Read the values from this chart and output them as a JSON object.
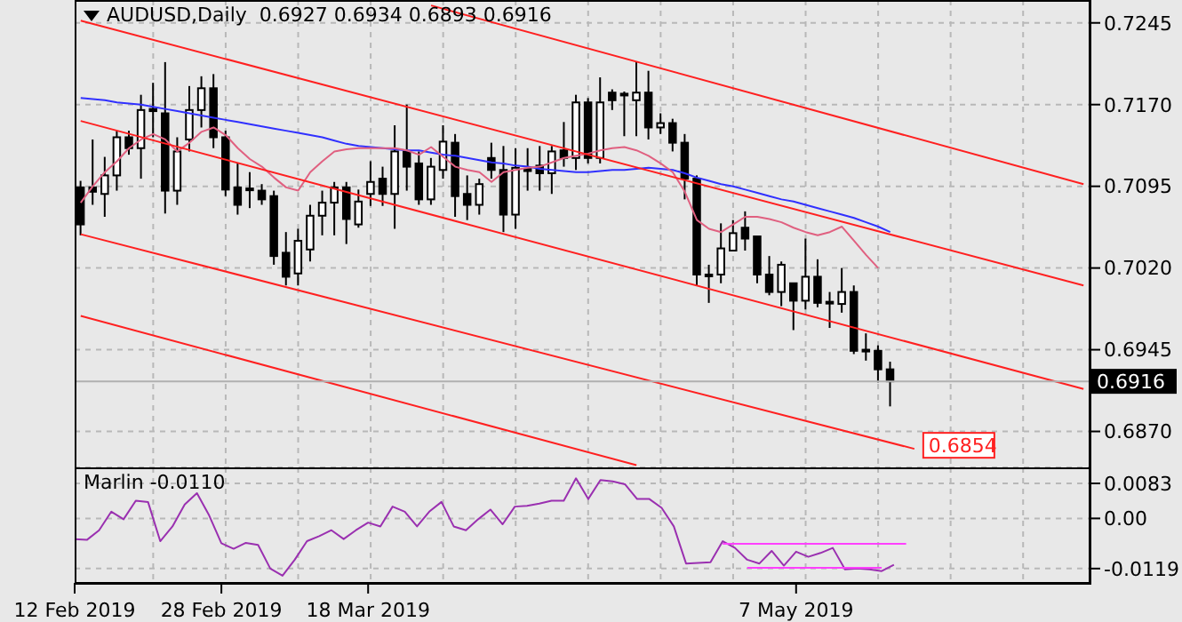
{
  "chart_data": [
    {
      "type": "candlestick",
      "title": "AUDUSD,Daily  0.6927 0.6934 0.6893 0.6916",
      "tick_labels": "y",
      "grid": true,
      "categories": [
        null,
        null,
        null,
        null,
        null,
        null,
        null,
        null,
        null,
        null,
        null,
        null,
        null,
        null,
        null,
        null,
        null,
        null,
        null,
        null,
        null,
        null,
        null,
        null,
        null,
        null,
        null,
        null,
        null,
        null,
        null,
        null,
        null,
        null,
        null,
        null,
        null,
        null,
        null,
        null,
        null,
        null,
        null,
        null,
        null,
        null,
        null,
        null,
        null,
        null,
        null,
        null,
        null,
        null,
        null,
        null,
        null,
        null,
        null,
        null,
        null,
        null,
        null,
        null,
        null,
        null,
        null,
        null,
        null,
        null,
        null,
        null,
        null,
        null,
        null,
        null,
        null,
        null,
        null,
        null,
        null,
        null,
        null,
        null
      ],
      "ohlc": [
        [
          0.7094,
          0.71,
          0.705,
          0.706
        ],
        [
          0.7094,
          0.7138,
          0.7078,
          0.709
        ],
        [
          0.7088,
          0.7122,
          0.7067,
          0.7105
        ],
        [
          0.7105,
          0.7146,
          0.7091,
          0.714
        ],
        [
          0.714,
          0.7146,
          0.7124,
          0.713
        ],
        [
          0.713,
          0.7179,
          0.7102,
          0.7165
        ],
        [
          0.7166,
          0.719,
          0.714,
          0.7164
        ],
        [
          0.7162,
          0.7209,
          0.707,
          0.7091
        ],
        [
          0.7091,
          0.714,
          0.7078,
          0.7127
        ],
        [
          0.7138,
          0.7187,
          0.7127,
          0.7165
        ],
        [
          0.7165,
          0.7196,
          0.7149,
          0.7185
        ],
        [
          0.7185,
          0.7198,
          0.713,
          0.714
        ],
        [
          0.714,
          0.7146,
          0.7086,
          0.7092
        ],
        [
          0.7094,
          0.7116,
          0.7069,
          0.7078
        ],
        [
          0.7093,
          0.7108,
          0.7075,
          0.7092
        ],
        [
          0.7091,
          0.7097,
          0.7078,
          0.7083
        ],
        [
          0.7086,
          0.7091,
          0.7023,
          0.7031
        ],
        [
          0.7034,
          0.7053,
          0.7004,
          0.7012
        ],
        [
          0.7015,
          0.7056,
          0.7004,
          0.7045
        ],
        [
          0.7037,
          0.7078,
          0.7026,
          0.7068
        ],
        [
          0.7068,
          0.7091,
          0.705,
          0.708
        ],
        [
          0.708,
          0.7099,
          0.705,
          0.7094
        ],
        [
          0.7094,
          0.7099,
          0.7042,
          0.7065
        ],
        [
          0.706,
          0.7092,
          0.7057,
          0.7081
        ],
        [
          0.7088,
          0.7118,
          0.7077,
          0.7099
        ],
        [
          0.7102,
          0.7113,
          0.7077,
          0.7088
        ],
        [
          0.7088,
          0.7151,
          0.7056,
          0.7127
        ],
        [
          0.7127,
          0.717,
          0.7091,
          0.7113
        ],
        [
          0.7116,
          0.7127,
          0.7078,
          0.7083
        ],
        [
          0.7083,
          0.7121,
          0.7078,
          0.7113
        ],
        [
          0.711,
          0.7151,
          0.7102,
          0.7136
        ],
        [
          0.7135,
          0.7143,
          0.7067,
          0.7086
        ],
        [
          0.7088,
          0.7105,
          0.7064,
          0.7078
        ],
        [
          0.7078,
          0.7102,
          0.7069,
          0.7097
        ],
        [
          0.7121,
          0.7135,
          0.7102,
          0.711
        ],
        [
          0.711,
          0.7132,
          0.7053,
          0.7069
        ],
        [
          0.7069,
          0.713,
          0.7056,
          0.7112
        ],
        [
          0.7111,
          0.713,
          0.7091,
          0.7109
        ],
        [
          0.7114,
          0.7132,
          0.7091,
          0.7107
        ],
        [
          0.7107,
          0.7132,
          0.7088,
          0.7127
        ],
        [
          0.7128,
          0.7154,
          0.7113,
          0.7121
        ],
        [
          0.7121,
          0.7179,
          0.711,
          0.7172
        ],
        [
          0.7172,
          0.7176,
          0.7116,
          0.7121
        ],
        [
          0.7121,
          0.7195,
          0.7116,
          0.7172
        ],
        [
          0.7181,
          0.7184,
          0.7165,
          0.7174
        ],
        [
          0.718,
          0.7182,
          0.7141,
          0.7179
        ],
        [
          0.7174,
          0.7209,
          0.7141,
          0.7181
        ],
        [
          0.7181,
          0.7201,
          0.7138,
          0.7149
        ],
        [
          0.7149,
          0.7162,
          0.7143,
          0.7153
        ],
        [
          0.7153,
          0.7157,
          0.7127,
          0.7135
        ],
        [
          0.7135,
          0.7143,
          0.7083,
          0.7102
        ],
        [
          0.7102,
          0.7105,
          0.7004,
          0.7014
        ],
        [
          0.7014,
          0.7023,
          0.6988,
          0.7013
        ],
        [
          0.7014,
          0.7061,
          0.7006,
          0.7038
        ],
        [
          0.7036,
          0.7064,
          0.7036,
          0.7052
        ],
        [
          0.7057,
          0.7072,
          0.7036,
          0.7047
        ],
        [
          0.7049,
          0.7049,
          0.7006,
          0.7014
        ],
        [
          0.7014,
          0.7031,
          0.6995,
          0.6998
        ],
        [
          0.6998,
          0.7026,
          0.6985,
          0.7023
        ],
        [
          0.7006,
          0.7006,
          0.6963,
          0.699
        ],
        [
          0.699,
          0.7047,
          0.6982,
          0.7012
        ],
        [
          0.7012,
          0.7028,
          0.6984,
          0.6988
        ],
        [
          0.6989,
          0.6998,
          0.6965,
          0.6988
        ],
        [
          0.6987,
          0.702,
          0.6979,
          0.6998
        ],
        [
          0.6998,
          0.7004,
          0.6941,
          0.6944
        ],
        [
          0.6945,
          0.696,
          0.6935,
          0.6944
        ],
        [
          0.6944,
          0.6949,
          0.6915,
          0.6927
        ],
        [
          0.6927,
          0.6934,
          0.6893,
          0.6916
        ],
        null,
        null,
        null,
        null,
        null,
        null,
        null,
        null,
        null,
        null,
        null,
        null,
        null,
        null,
        null,
        null
      ],
      "series": [
        {
          "type": "line",
          "color": "#3030ff",
          "values": [
            0.7176,
            0.7175,
            0.7174,
            0.7172,
            0.7171,
            0.717,
            0.7168,
            0.7166,
            0.7164,
            0.7162,
            0.716,
            0.7158,
            0.7156,
            0.7154,
            0.7152,
            0.715,
            0.7148,
            0.7146,
            0.7144,
            0.7142,
            0.714,
            0.7137,
            0.7134,
            0.7132,
            0.7131,
            0.713,
            0.7129,
            0.7128,
            0.7128,
            0.7126,
            0.7124,
            0.7123,
            0.7121,
            0.7119,
            0.7117,
            0.7116,
            0.7114,
            0.7113,
            0.7111,
            0.711,
            0.7109,
            0.7108,
            0.7108,
            0.7109,
            0.711,
            0.711,
            0.7111,
            0.7112,
            0.7111,
            0.711,
            0.7107,
            0.7103,
            0.71,
            0.7097,
            0.7095,
            0.7092,
            0.7089,
            0.7086,
            0.7083,
            0.7081,
            0.7078,
            0.7075,
            0.7072,
            0.7069,
            0.7066,
            0.7062,
            0.7058,
            0.7053,
            null,
            null,
            null,
            null,
            null,
            null,
            null,
            null,
            null,
            null,
            null,
            null,
            null,
            null,
            null,
            null
          ]
        },
        {
          "type": "line",
          "color": "#e06080",
          "values": [
            0.708,
            0.7095,
            0.7108,
            0.7118,
            0.713,
            0.7138,
            0.7143,
            0.7138,
            0.7127,
            0.7135,
            0.7145,
            0.7149,
            0.7142,
            0.713,
            0.712,
            0.7113,
            0.7103,
            0.7094,
            0.7091,
            0.7108,
            0.7118,
            0.7127,
            0.7129,
            0.713,
            0.713,
            0.713,
            0.713,
            0.7128,
            0.7124,
            0.7131,
            0.7122,
            0.7113,
            0.711,
            0.7108,
            0.7099,
            0.7108,
            0.711,
            0.7112,
            0.7113,
            0.7117,
            0.7121,
            0.7123,
            0.7125,
            0.7128,
            0.713,
            0.7131,
            0.7128,
            0.7123,
            0.7116,
            0.7108,
            0.709,
            0.7064,
            0.7056,
            0.7053,
            0.706,
            0.7067,
            0.7067,
            0.7065,
            0.7062,
            0.7057,
            0.7053,
            0.705,
            0.7053,
            0.7058,
            0.7045,
            0.7032,
            0.702,
            null,
            null,
            null,
            null,
            null,
            null,
            null,
            null,
            null,
            null,
            null,
            null,
            null,
            null,
            null,
            null,
            null
          ]
        },
        {
          "type": "line",
          "color": "#ff2020",
          "values": [
            null,
            null,
            null,
            null,
            null,
            null,
            null,
            null,
            null,
            null,
            null,
            null,
            null,
            null,
            null,
            null,
            null,
            null,
            null,
            null,
            null,
            null,
            null,
            null,
            null,
            null,
            null,
            null,
            null,
            0.7261,
            null,
            null,
            null,
            null,
            null,
            null,
            null,
            null,
            null,
            null,
            null,
            null,
            null,
            null,
            null,
            null,
            null,
            null,
            null,
            null,
            null,
            null,
            null,
            null,
            null,
            null,
            null,
            null,
            null,
            null,
            null,
            null,
            null,
            null,
            null,
            null,
            null,
            null,
            null,
            null,
            null,
            null,
            null,
            null,
            null,
            null,
            null,
            null,
            null,
            null,
            null,
            null,
            null,
            0.7097
          ]
        },
        {
          "type": "line",
          "color": "#ff2020",
          "values": [
            0.7247,
            null,
            null,
            null,
            null,
            null,
            null,
            null,
            null,
            null,
            null,
            null,
            null,
            null,
            null,
            null,
            null,
            null,
            null,
            null,
            null,
            null,
            null,
            null,
            null,
            null,
            null,
            null,
            null,
            null,
            null,
            null,
            null,
            null,
            null,
            null,
            null,
            null,
            null,
            null,
            null,
            null,
            null,
            null,
            null,
            null,
            null,
            null,
            null,
            null,
            null,
            null,
            null,
            null,
            null,
            null,
            null,
            null,
            null,
            null,
            null,
            null,
            null,
            null,
            null,
            null,
            null,
            null,
            null,
            null,
            null,
            null,
            null,
            null,
            null,
            null,
            null,
            null,
            null,
            null,
            null,
            null,
            null,
            0.7004
          ]
        },
        {
          "type": "line",
          "color": "#ff2020",
          "values": [
            0.7155,
            null,
            null,
            null,
            null,
            null,
            null,
            null,
            null,
            null,
            null,
            null,
            null,
            null,
            null,
            null,
            null,
            null,
            null,
            null,
            null,
            null,
            null,
            null,
            null,
            null,
            null,
            null,
            null,
            null,
            null,
            null,
            null,
            null,
            null,
            null,
            null,
            null,
            null,
            null,
            null,
            null,
            null,
            null,
            null,
            null,
            null,
            null,
            null,
            null,
            null,
            null,
            null,
            null,
            null,
            null,
            null,
            null,
            null,
            null,
            null,
            null,
            null,
            null,
            null,
            null,
            null,
            null,
            null,
            null,
            null,
            null,
            null,
            null,
            null,
            null,
            null,
            null,
            null,
            null,
            null,
            null,
            null,
            0.6909
          ]
        },
        {
          "type": "line",
          "color": "#ff2020",
          "values": [
            0.7051,
            null,
            null,
            null,
            null,
            null,
            null,
            null,
            null,
            null,
            null,
            null,
            null,
            null,
            null,
            null,
            null,
            null,
            null,
            null,
            null,
            null,
            null,
            null,
            null,
            null,
            null,
            null,
            null,
            null,
            null,
            null,
            null,
            null,
            null,
            null,
            null,
            null,
            null,
            null,
            null,
            null,
            null,
            null,
            null,
            null,
            null,
            null,
            null,
            null,
            null,
            null,
            null,
            null,
            null,
            null,
            null,
            null,
            null,
            null,
            null,
            null,
            null,
            null,
            null,
            null,
            null,
            null,
            null,
            0.6854,
            null,
            null,
            null,
            null,
            null,
            null,
            null,
            null,
            null,
            null,
            null,
            null,
            null,
            null
          ],
          "value_labels": [
            null,
            null,
            null,
            null,
            null,
            null,
            null,
            null,
            null,
            null,
            null,
            null,
            null,
            null,
            null,
            null,
            null,
            null,
            null,
            null,
            null,
            null,
            null,
            null,
            null,
            null,
            null,
            null,
            null,
            null,
            null,
            null,
            null,
            null,
            null,
            null,
            null,
            null,
            null,
            null,
            null,
            null,
            null,
            null,
            null,
            null,
            null,
            null,
            null,
            null,
            null,
            null,
            null,
            null,
            null,
            null,
            null,
            null,
            null,
            null,
            null,
            null,
            null,
            null,
            null,
            null,
            null,
            null,
            null,
            "0.6854",
            null,
            null,
            null,
            null,
            null,
            null,
            null,
            null,
            null,
            null,
            null,
            null,
            null,
            null
          ]
        },
        {
          "type": "line",
          "color": "#ff2020",
          "values": [
            0.6976,
            null,
            null,
            null,
            null,
            null,
            null,
            null,
            null,
            null,
            null,
            null,
            null,
            null,
            null,
            null,
            null,
            null,
            null,
            null,
            null,
            null,
            null,
            null,
            null,
            null,
            null,
            null,
            null,
            null,
            null,
            null,
            null,
            null,
            null,
            null,
            null,
            null,
            null,
            null,
            null,
            null,
            null,
            null,
            null,
            null,
            0.6839,
            null,
            null,
            null,
            null,
            null,
            null,
            null,
            null,
            null,
            null,
            null,
            null,
            null,
            null,
            null,
            null,
            null,
            null,
            null,
            null,
            null,
            null,
            null,
            null,
            null,
            null,
            null,
            null,
            null,
            null,
            null,
            null,
            null,
            null,
            null,
            null,
            null
          ]
        }
      ],
      "ylim": [
        0.6837,
        0.7266
      ],
      "yticks": [
        0.7245,
        {
          "value": 0.717,
          "label": "0.7170"
        },
        0.7095,
        {
          "value": 0.702,
          "label": "0.7020"
        },
        0.6945,
        {
          "value": 0.687,
          "label": "0.6870"
        }
      ],
      "ref_lines": [
        {
          "axis": "y",
          "value": 0.6916,
          "label": "0.6916",
          "color": "#b0b0b0"
        }
      ]
    },
    {
      "type": "line",
      "title": "Marlin -0.0110",
      "grid": true,
      "categories": [
        "12 Feb 2019",
        null,
        null,
        null,
        null,
        null,
        null,
        null,
        null,
        null,
        null,
        null,
        "28 Feb 2019",
        null,
        null,
        null,
        null,
        null,
        null,
        null,
        null,
        null,
        null,
        null,
        "18 Mar 2019",
        null,
        null,
        null,
        null,
        null,
        null,
        null,
        null,
        null,
        null,
        null,
        null,
        null,
        null,
        null,
        null,
        null,
        null,
        null,
        null,
        null,
        null,
        null,
        null,
        null,
        null,
        null,
        null,
        null,
        null,
        null,
        null,
        null,
        null,
        "7 May 2019",
        null,
        null,
        null,
        null,
        null,
        null,
        null,
        null,
        null,
        null,
        null,
        null,
        null,
        null,
        null,
        null,
        null,
        null,
        null,
        null,
        null,
        null,
        null,
        null
      ],
      "series": [
        {
          "color": "#9a30b0",
          "values": [
            -0.0049,
            -0.0051,
            -0.0028,
            0.0016,
            -0.0002,
            0.0042,
            0.0039,
            -0.0054,
            -0.0019,
            0.0033,
            0.006,
            0.0007,
            -0.0059,
            -0.0072,
            -0.0058,
            -0.0063,
            -0.0119,
            -0.0136,
            -0.0098,
            -0.0054,
            -0.0042,
            -0.0028,
            -0.0049,
            -0.0028,
            -0.001,
            -0.0019,
            0.0028,
            0.0016,
            -0.0019,
            0.0016,
            0.0039,
            -0.0019,
            -0.0028,
            -0.0002,
            0.0021,
            -0.0014,
            0.0028,
            0.003,
            0.0035,
            0.0042,
            0.0042,
            0.0095,
            0.0046,
            0.0091,
            0.0088,
            0.0081,
            0.0046,
            0.0046,
            0.0025,
            -0.0019,
            -0.0107,
            null,
            -0.0104,
            -0.0054,
            -0.007,
            -0.0098,
            -0.0107,
            -0.0077,
            -0.0112,
            -0.0079,
            -0.0091,
            -0.0082,
            -0.007,
            -0.0121,
            -0.0119,
            -0.0121,
            -0.0125,
            -0.011,
            null,
            null,
            null,
            null,
            null,
            null,
            null,
            null,
            null,
            null,
            null,
            null,
            null,
            null,
            null,
            null
          ]
        },
        {
          "color": "#ff40ff",
          "values": [
            null,
            null,
            null,
            null,
            null,
            null,
            null,
            null,
            null,
            null,
            null,
            null,
            null,
            null,
            null,
            null,
            null,
            null,
            null,
            null,
            null,
            null,
            null,
            null,
            null,
            null,
            null,
            null,
            null,
            null,
            null,
            null,
            null,
            null,
            null,
            null,
            null,
            null,
            null,
            null,
            null,
            null,
            null,
            null,
            null,
            null,
            null,
            null,
            null,
            null,
            null,
            null,
            null,
            -0.006,
            null,
            null,
            null,
            null,
            null,
            null,
            null,
            null,
            null,
            null,
            null,
            null,
            null,
            null,
            -0.006,
            null,
            null,
            null,
            null,
            null,
            null,
            null,
            null,
            null,
            null,
            null,
            null,
            null,
            null,
            null
          ]
        },
        {
          "color": "#ff40ff",
          "values": [
            null,
            null,
            null,
            null,
            null,
            null,
            null,
            null,
            null,
            null,
            null,
            null,
            null,
            null,
            null,
            null,
            null,
            null,
            null,
            null,
            null,
            null,
            null,
            null,
            null,
            null,
            null,
            null,
            null,
            null,
            null,
            null,
            null,
            null,
            null,
            null,
            null,
            null,
            null,
            null,
            null,
            null,
            null,
            null,
            null,
            null,
            null,
            null,
            null,
            null,
            null,
            null,
            null,
            null,
            null,
            -0.0117,
            null,
            null,
            null,
            null,
            null,
            null,
            null,
            null,
            null,
            null,
            -0.0117,
            null,
            null,
            null,
            null,
            null,
            null,
            null,
            null,
            null,
            null,
            null,
            null,
            null,
            null,
            null,
            null,
            null
          ]
        }
      ],
      "ylim": [
        -0.0153,
        0.0121
      ],
      "yticks": [
        0.0083,
        {
          "value": 0,
          "label": "0.00"
        },
        -0.0119
      ]
    }
  ]
}
